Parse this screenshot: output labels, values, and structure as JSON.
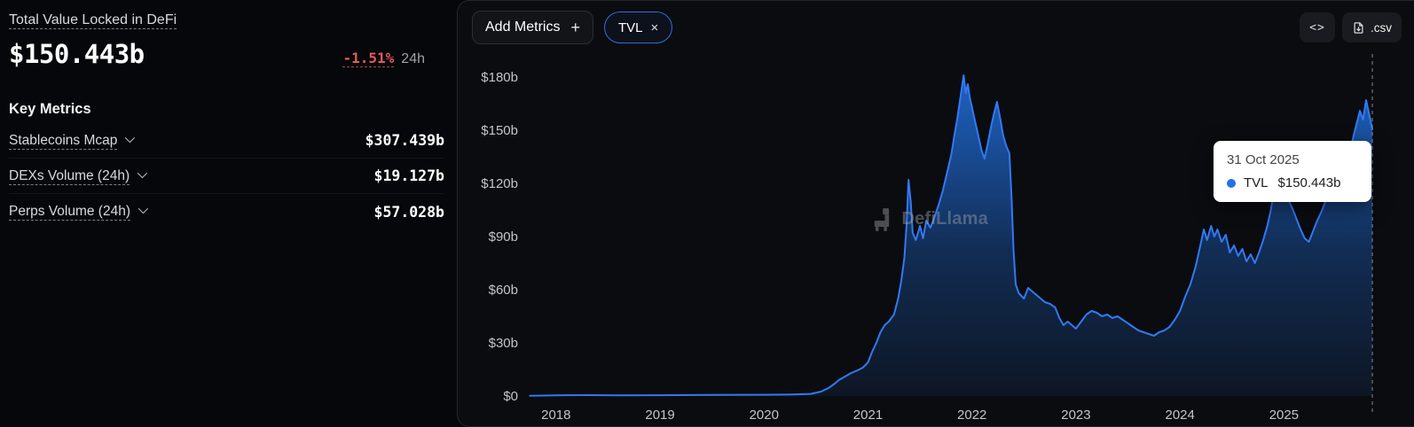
{
  "sidebar": {
    "title": "Total Value Locked in DeFi",
    "value": "$150.443b",
    "change": "-1.51%",
    "change_period": "24h",
    "section_title": "Key Metrics",
    "metrics": [
      {
        "label": "Stablecoins Mcap",
        "value": "$307.439b"
      },
      {
        "label": "DEXs Volume (24h)",
        "value": "$19.127b"
      },
      {
        "label": "Perps Volume (24h)",
        "value": "$57.028b"
      }
    ]
  },
  "toolbar": {
    "add_metrics_label": "Add Metrics",
    "add_metrics_plus": "+",
    "tvl_pill_label": "TVL",
    "tvl_pill_close": "×",
    "embed_icon": "<>",
    "csv_label": ".csv"
  },
  "watermark": "DefiLlama",
  "tooltip": {
    "date": "31 Oct 2025",
    "series": "TVL",
    "value": "$150.443b",
    "dot_color": "#2172e5"
  },
  "colors": {
    "accent_blue": "#2172e5",
    "line_blue": "#3179f5",
    "negative_red": "#e25c5c",
    "panel_bg": "#0b0c0f",
    "tooltip_bg": "#ffffff"
  },
  "chart_data": {
    "type": "area",
    "title": "Total Value Locked in DeFi",
    "series_name": "TVL",
    "unit": "$b",
    "latest_point": {
      "date": "31 Oct 2025",
      "value_label": "$150.443b",
      "value": 150.443
    },
    "x_ticks": [
      2018,
      2019,
      2020,
      2021,
      2022,
      2023,
      2024,
      2025
    ],
    "y_ticks": [
      "$0",
      "$30b",
      "$60b",
      "$90b",
      "$120b",
      "$150b",
      "$180b"
    ],
    "y_tick_values": [
      0,
      30,
      60,
      90,
      120,
      150,
      180
    ],
    "xlim": [
      2017.72,
      2026.08
    ],
    "ylim": [
      0,
      186
    ],
    "grid": false,
    "legend": false,
    "points": [
      [
        2017.75,
        0.1
      ],
      [
        2018.0,
        0.4
      ],
      [
        2018.3,
        0.5
      ],
      [
        2018.6,
        0.35
      ],
      [
        2019.0,
        0.45
      ],
      [
        2019.5,
        0.6
      ],
      [
        2020.0,
        0.7
      ],
      [
        2020.25,
        0.8
      ],
      [
        2020.45,
        1.2
      ],
      [
        2020.55,
        2.5
      ],
      [
        2020.62,
        4.5
      ],
      [
        2020.68,
        7
      ],
      [
        2020.72,
        9
      ],
      [
        2020.78,
        11
      ],
      [
        2020.84,
        13
      ],
      [
        2020.9,
        14.5
      ],
      [
        2020.95,
        16
      ],
      [
        2021.0,
        19
      ],
      [
        2021.04,
        25
      ],
      [
        2021.08,
        30
      ],
      [
        2021.12,
        36
      ],
      [
        2021.16,
        40
      ],
      [
        2021.2,
        42
      ],
      [
        2021.25,
        46
      ],
      [
        2021.29,
        55
      ],
      [
        2021.32,
        65
      ],
      [
        2021.35,
        78
      ],
      [
        2021.37,
        96
      ],
      [
        2021.39,
        122
      ],
      [
        2021.41,
        110
      ],
      [
        2021.43,
        92
      ],
      [
        2021.46,
        88
      ],
      [
        2021.5,
        96
      ],
      [
        2021.53,
        89
      ],
      [
        2021.56,
        99
      ],
      [
        2021.6,
        95
      ],
      [
        2021.64,
        101
      ],
      [
        2021.68,
        108
      ],
      [
        2021.72,
        116
      ],
      [
        2021.76,
        126
      ],
      [
        2021.8,
        136
      ],
      [
        2021.83,
        147
      ],
      [
        2021.86,
        157
      ],
      [
        2021.89,
        169
      ],
      [
        2021.92,
        181
      ],
      [
        2021.94,
        171
      ],
      [
        2021.96,
        176
      ],
      [
        2021.98,
        168
      ],
      [
        2022.0,
        163
      ],
      [
        2022.03,
        155
      ],
      [
        2022.06,
        147
      ],
      [
        2022.09,
        139
      ],
      [
        2022.12,
        134
      ],
      [
        2022.15,
        142
      ],
      [
        2022.18,
        151
      ],
      [
        2022.21,
        159
      ],
      [
        2022.24,
        166
      ],
      [
        2022.27,
        157
      ],
      [
        2022.3,
        147
      ],
      [
        2022.33,
        141
      ],
      [
        2022.36,
        137
      ],
      [
        2022.38,
        112
      ],
      [
        2022.4,
        82
      ],
      [
        2022.42,
        63
      ],
      [
        2022.45,
        58
      ],
      [
        2022.5,
        55
      ],
      [
        2022.54,
        61
      ],
      [
        2022.58,
        59
      ],
      [
        2022.62,
        57
      ],
      [
        2022.66,
        55
      ],
      [
        2022.7,
        53
      ],
      [
        2022.75,
        52
      ],
      [
        2022.8,
        50
      ],
      [
        2022.84,
        44
      ],
      [
        2022.88,
        40
      ],
      [
        2022.92,
        42
      ],
      [
        2022.96,
        40
      ],
      [
        2023.0,
        38
      ],
      [
        2023.05,
        42
      ],
      [
        2023.1,
        46
      ],
      [
        2023.15,
        48
      ],
      [
        2023.2,
        47
      ],
      [
        2023.25,
        45
      ],
      [
        2023.3,
        46
      ],
      [
        2023.35,
        44
      ],
      [
        2023.4,
        45
      ],
      [
        2023.45,
        43
      ],
      [
        2023.5,
        41
      ],
      [
        2023.55,
        39
      ],
      [
        2023.6,
        37
      ],
      [
        2023.65,
        36
      ],
      [
        2023.7,
        35
      ],
      [
        2023.75,
        34
      ],
      [
        2023.8,
        36
      ],
      [
        2023.85,
        37
      ],
      [
        2023.9,
        39
      ],
      [
        2023.95,
        43
      ],
      [
        2024.0,
        48
      ],
      [
        2024.05,
        56
      ],
      [
        2024.1,
        63
      ],
      [
        2024.15,
        73
      ],
      [
        2024.2,
        86
      ],
      [
        2024.23,
        94
      ],
      [
        2024.26,
        88
      ],
      [
        2024.3,
        96
      ],
      [
        2024.33,
        90
      ],
      [
        2024.36,
        94
      ],
      [
        2024.4,
        87
      ],
      [
        2024.44,
        91
      ],
      [
        2024.48,
        81
      ],
      [
        2024.52,
        85
      ],
      [
        2024.56,
        79
      ],
      [
        2024.6,
        83
      ],
      [
        2024.64,
        76
      ],
      [
        2024.68,
        80
      ],
      [
        2024.72,
        75
      ],
      [
        2024.76,
        81
      ],
      [
        2024.8,
        88
      ],
      [
        2024.84,
        96
      ],
      [
        2024.87,
        104
      ],
      [
        2024.9,
        114
      ],
      [
        2024.93,
        127
      ],
      [
        2024.96,
        121
      ],
      [
        2025.0,
        117
      ],
      [
        2025.04,
        111
      ],
      [
        2025.08,
        106
      ],
      [
        2025.12,
        100
      ],
      [
        2025.16,
        94
      ],
      [
        2025.2,
        89
      ],
      [
        2025.24,
        87
      ],
      [
        2025.28,
        93
      ],
      [
        2025.32,
        99
      ],
      [
        2025.36,
        104
      ],
      [
        2025.4,
        110
      ],
      [
        2025.44,
        114
      ],
      [
        2025.48,
        117
      ],
      [
        2025.52,
        121
      ],
      [
        2025.56,
        125
      ],
      [
        2025.6,
        131
      ],
      [
        2025.64,
        139
      ],
      [
        2025.67,
        147
      ],
      [
        2025.7,
        154
      ],
      [
        2025.73,
        161
      ],
      [
        2025.76,
        156
      ],
      [
        2025.79,
        167
      ],
      [
        2025.82,
        159
      ],
      [
        2025.85,
        150.443
      ]
    ]
  }
}
